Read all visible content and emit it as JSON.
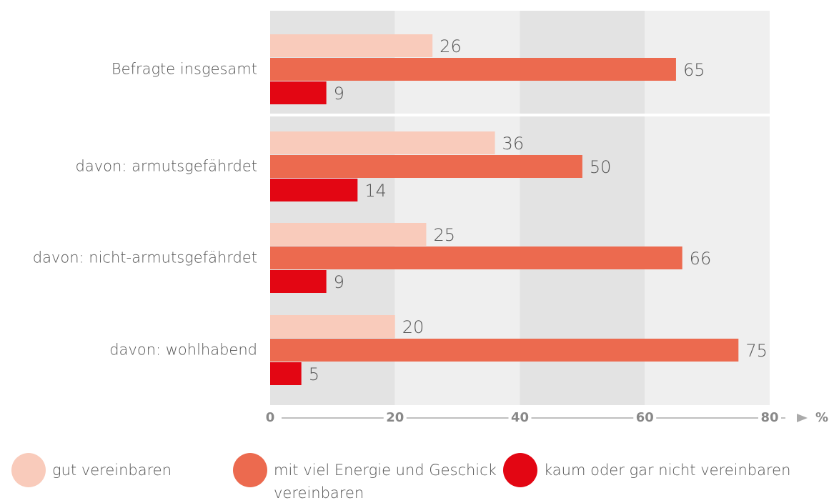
{
  "chart_data": {
    "type": "bar",
    "orientation": "horizontal",
    "categories": [
      "Befragte insgesamt",
      "davon: armutsgefährdet",
      "davon: nicht-armutsgefährdet",
      "davon: wohlhabend"
    ],
    "series": [
      {
        "name": "gut vereinbaren",
        "color": "#f9cbbb",
        "values": [
          26,
          36,
          25,
          20
        ]
      },
      {
        "name": "mit viel Energie und Geschick vereinbaren",
        "color": "#ec6a4f",
        "values": [
          65,
          50,
          66,
          75
        ]
      },
      {
        "name": "kaum oder gar nicht vereinbaren",
        "color": "#e30613",
        "values": [
          9,
          14,
          9,
          5
        ]
      }
    ],
    "xlim": [
      0,
      80
    ],
    "xticks": [
      0,
      20,
      40,
      60,
      80
    ],
    "xlabel": "%"
  }
}
